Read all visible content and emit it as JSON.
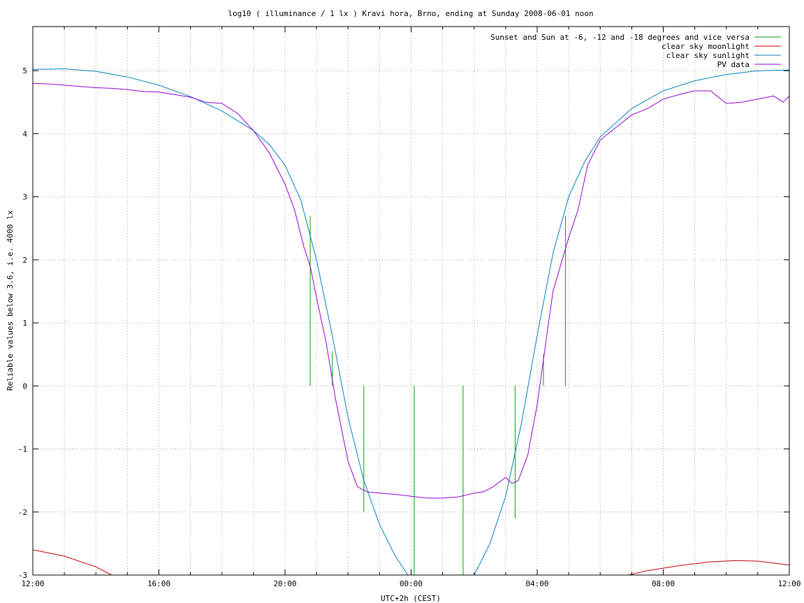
{
  "chart_data": {
    "type": "line",
    "title": "log10 ( illuminance / 1 lx ) Kravi hora, Brno, ending at Sunday 2008-06-01 noon",
    "xlabel": "UTC+2h (CEST)",
    "ylabel": "Reliable values below 3.6, i.e. 4000 lx",
    "xlim": [
      0,
      24
    ],
    "ylim": [
      -3,
      5.7
    ],
    "x_unit": "hours since Saturday 2008-05-31 12:00 CEST",
    "x_ticks": [
      {
        "v": 0,
        "label": "12:00"
      },
      {
        "v": 4,
        "label": "16:00"
      },
      {
        "v": 8,
        "label": "20:00"
      },
      {
        "v": 12,
        "label": "00:00"
      },
      {
        "v": 16,
        "label": "04:00"
      },
      {
        "v": 20,
        "label": "08:00"
      },
      {
        "v": 24,
        "label": "12:00"
      }
    ],
    "y_ticks": [
      5,
      4,
      3,
      2,
      1,
      0,
      -1,
      -2,
      -3
    ],
    "x_minor_step": 1,
    "grid": true,
    "legend_position": "top-right",
    "series": [
      {
        "name": "Sunset and Sun at -6, -12 and -18 degrees and vice versa",
        "color": "#00a000",
        "kind": "impulses",
        "impulses": [
          {
            "x": 8.8,
            "y0": 0,
            "y1": 2.7
          },
          {
            "x": 9.5,
            "y0": 0,
            "y1": 0.55
          },
          {
            "x": 10.5,
            "y0": 0,
            "y1": -2.0
          },
          {
            "x": 12.1,
            "y0": 0,
            "y1": -3.0
          },
          {
            "x": 13.65,
            "y0": 0,
            "y1": -3.0
          },
          {
            "x": 15.3,
            "y0": 0,
            "y1": -2.1
          },
          {
            "x": 16.2,
            "y0": 0,
            "y1": 0.5
          },
          {
            "x": 16.9,
            "y0": 0,
            "y1": 2.7
          }
        ]
      },
      {
        "name": "clear sky moonlight",
        "color": "#c00000",
        "kind": "line",
        "x": [
          0,
          1,
          2,
          2.5,
          18.9,
          19.5,
          20.5,
          21.5,
          22.3,
          23,
          24
        ],
        "y": [
          -2.6,
          -2.7,
          -2.87,
          -3.0,
          -3.0,
          -2.93,
          -2.85,
          -2.79,
          -2.77,
          -2.78,
          -2.84
        ]
      },
      {
        "name": "clear sky sunlight",
        "color": "#0080c0",
        "kind": "line",
        "x": [
          0,
          1,
          2,
          3,
          4,
          5,
          6,
          7,
          7.5,
          8,
          8.5,
          9,
          9.5,
          10,
          10.5,
          11,
          11.5,
          11.9,
          14,
          14.5,
          15,
          15.5,
          16,
          16.5,
          17,
          17.5,
          18,
          19,
          20,
          21,
          22,
          23,
          24
        ],
        "y": [
          5.02,
          5.03,
          4.99,
          4.9,
          4.77,
          4.59,
          4.36,
          4.05,
          3.83,
          3.5,
          2.95,
          2.0,
          0.8,
          -0.5,
          -1.5,
          -2.2,
          -2.7,
          -3.0,
          -3.0,
          -2.5,
          -1.75,
          -0.6,
          0.8,
          2.1,
          3.0,
          3.55,
          3.95,
          4.4,
          4.68,
          4.84,
          4.94,
          5.0,
          5.01
        ]
      },
      {
        "name": "PV data",
        "color": "#9400d3",
        "kind": "line",
        "x": [
          0,
          0.5,
          1,
          1.5,
          2,
          2.5,
          3,
          3.5,
          4,
          4.5,
          5,
          5.5,
          6,
          6.5,
          7,
          7.5,
          8,
          8.3,
          8.6,
          8.8,
          9,
          9.3,
          9.6,
          10,
          10.3,
          10.6,
          11,
          11.5,
          12,
          12.5,
          13,
          13.5,
          14,
          14.3,
          14.6,
          15,
          15.2,
          15.4,
          15.7,
          16,
          16.5,
          17,
          17.3,
          17.6,
          18,
          18.5,
          19,
          19.5,
          20,
          20.5,
          21,
          21.5,
          22,
          22.5,
          23,
          23.5,
          23.8,
          24
        ],
        "y": [
          4.8,
          4.79,
          4.77,
          4.75,
          4.73,
          4.72,
          4.7,
          4.67,
          4.66,
          4.62,
          4.58,
          4.5,
          4.48,
          4.32,
          4.05,
          3.7,
          3.2,
          2.8,
          2.2,
          1.9,
          1.4,
          0.7,
          -0.2,
          -1.2,
          -1.6,
          -1.68,
          -1.7,
          -1.72,
          -1.75,
          -1.78,
          -1.78,
          -1.76,
          -1.7,
          -1.68,
          -1.6,
          -1.45,
          -1.55,
          -1.5,
          -1.1,
          -0.3,
          1.5,
          2.35,
          2.8,
          3.5,
          3.9,
          4.1,
          4.3,
          4.4,
          4.55,
          4.62,
          4.68,
          4.68,
          4.48,
          4.5,
          4.55,
          4.6,
          4.5,
          4.6
        ]
      }
    ]
  }
}
